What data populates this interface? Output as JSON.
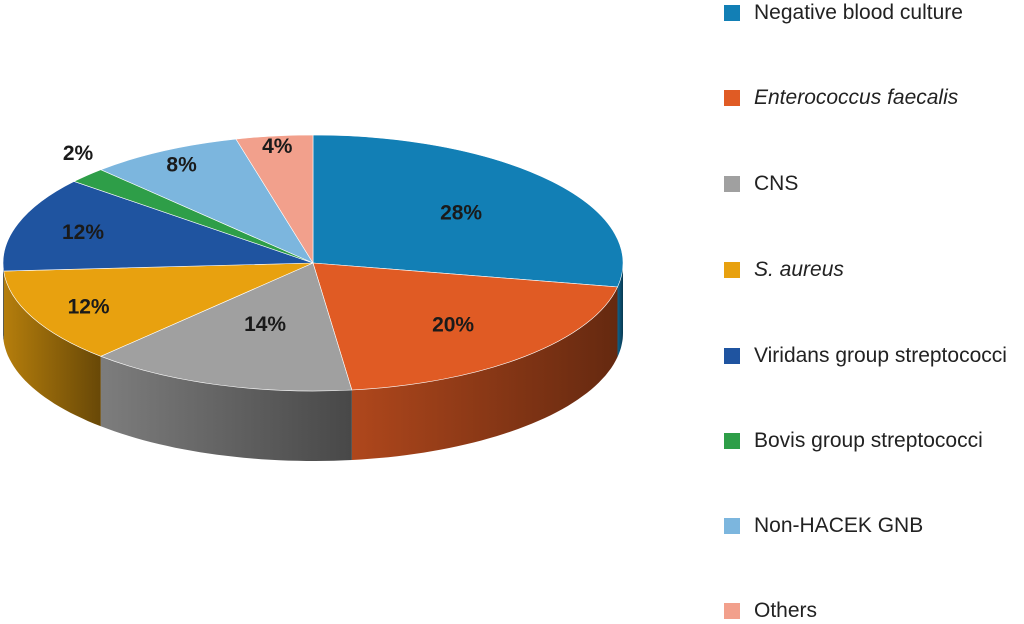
{
  "chart_data": {
    "type": "pie",
    "style": "3d",
    "title": "",
    "series": [
      {
        "values": [
          28,
          20,
          14,
          12,
          12,
          2,
          8,
          4
        ],
        "labels": [
          "28%",
          "20%",
          "14%",
          "12%",
          "12%",
          "2%",
          "8%",
          "4%"
        ]
      }
    ],
    "categories": [
      "Negative blood culture",
      "Enterococcus faecalis",
      "CNS",
      "S. aureus",
      "Viridans group streptococci",
      "Bovis group streptococci",
      "Non-HACEK GNB",
      "Others"
    ],
    "italic": [
      false,
      true,
      false,
      true,
      false,
      false,
      false,
      false
    ],
    "colors": [
      "#127fb5",
      "#e05b24",
      "#a0a0a0",
      "#e8a10f",
      "#1f54a0",
      "#2e9e48",
      "#7cb6de",
      "#f2a08c"
    ],
    "legend_position": "right"
  }
}
